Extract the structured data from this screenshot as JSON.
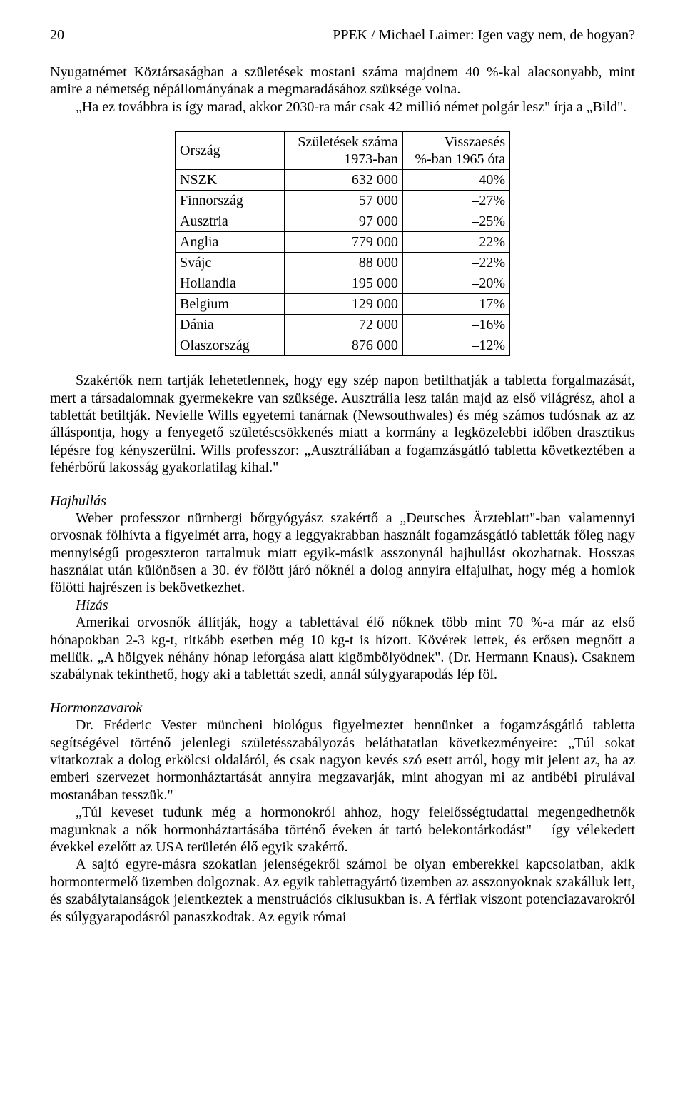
{
  "header": {
    "page_number": "20",
    "running_title": "PPEK / Michael Laimer: Igen vagy nem, de hogyan?"
  },
  "intro": {
    "p1": "Nyugatnémet Köztársaságban a születések mostani száma majdnem 40 %-kal alacsonyabb, mint amire a németség népállományának a megmaradásához szüksége volna.",
    "p2": "„Ha ez továbbra is így marad, akkor 2030-ra már csak 42 millió német polgár lesz\" írja a „Bild\"."
  },
  "table": {
    "col_country": "Ország",
    "col_births_l1": "Születések száma",
    "col_births_l2": "1973-ban",
    "col_decline_l1": "Visszaesés",
    "col_decline_l2": "%-ban 1965 óta",
    "rows": [
      {
        "country": "NSZK",
        "births": "632 000",
        "decline": "–40%"
      },
      {
        "country": "Finnország",
        "births": "57 000",
        "decline": "–27%"
      },
      {
        "country": "Ausztria",
        "births": "97 000",
        "decline": "–25%"
      },
      {
        "country": "Anglia",
        "births": "779 000",
        "decline": "–22%"
      },
      {
        "country": "Svájc",
        "births": "88 000",
        "decline": "–22%"
      },
      {
        "country": "Hollandia",
        "births": "195 000",
        "decline": "–20%"
      },
      {
        "country": "Belgium",
        "births": "129 000",
        "decline": "–17%"
      },
      {
        "country": "Dánia",
        "births": "72 000",
        "decline": "–16%"
      },
      {
        "country": "Olaszország",
        "births": "876 000",
        "decline": "–12%"
      }
    ]
  },
  "after_table": {
    "p1": "Szakértők nem tartják lehetetlennek, hogy egy szép napon betilthatják a tabletta forgalmazását, mert a társadalomnak gyermekekre van szüksége. Ausztrália lesz talán majd az első világrész, ahol a tablettát betiltják. Nevielle Wills egyetemi tanárnak (Newsouthwales) és még számos tudósnak az az álláspontja, hogy a fenyegető születéscsökkenés miatt a kormány a legközelebbi időben drasztikus lépésre fog kényszerülni. Wills professzor: „Ausztráliában a fogamzásgátló tabletta következtében a fehérbőrű lakosság gyakorlatilag kihal.\""
  },
  "hajhullas": {
    "title": "Hajhullás",
    "p1": "Weber professzor nürnbergi bőrgyógyász szakértő a „Deutsches Ärzteblatt\"-ban valamennyi orvosnak fölhívta a figyelmét arra, hogy a leggyakrabban használt fogamzásgátló tabletták főleg nagy mennyiségű progeszteron tartalmuk miatt egyik-másik asszonynál hajhullást okozhatnak. Hosszas használat után különösen a 30. év fölött járó nőknél a dolog annyira elfajulhat, hogy még a homlok fölötti hajrészen is bekövetkezhet."
  },
  "hizas": {
    "title": "Hízás",
    "p1": "Amerikai orvosnők állítják, hogy a tablettával élő nőknek több mint 70 %-a már az első hónapokban 2-3 kg-t, ritkább esetben még 10 kg-t is hízott. Kövérek lettek, és erősen megnőtt a mellük. „A hölgyek néhány hónap leforgása alatt kigömbölyödnek\". (Dr. Hermann Knaus). Csaknem szabálynak tekinthető, hogy aki a tablettát szedi, annál súlygyarapodás lép föl."
  },
  "hormon": {
    "title": "Hormonzavarok",
    "p1": "Dr. Fréderic Vester müncheni biológus figyelmeztet bennünket a fogamzásgátló tabletta segítségével történő jelenlegi születésszabályozás beláthatatlan következményeire: „Túl sokat vitatkoztak a dolog erkölcsi oldaláról, és csak nagyon kevés szó esett arról, hogy mit jelent az, ha az emberi szervezet hormonháztartását annyira megzavarják, mint ahogyan mi az antibébi pirulával mostanában tesszük.\"",
    "p2": "„Túl keveset tudunk még a hormonokról ahhoz, hogy felelősségtudattal megengedhetnők magunknak a nők hormonháztartásába történő éveken át tartó belekontárkodást\" – így vélekedett évekkel ezelőtt az USA területén élő egyik szakértő.",
    "p3": "A sajtó egyre-másra szokatlan jelenségekről számol be olyan emberekkel kapcsolatban, akik hormontermelő üzemben dolgoznak. Az egyik tablettagyártó üzemben az asszonyoknak szakálluk lett, és szabálytalanságok jelentkeztek a menstruációs ciklusukban is. A férfiak viszont potenciazavarokról és súlygyarapodásról panaszkodtak. Az egyik római"
  }
}
